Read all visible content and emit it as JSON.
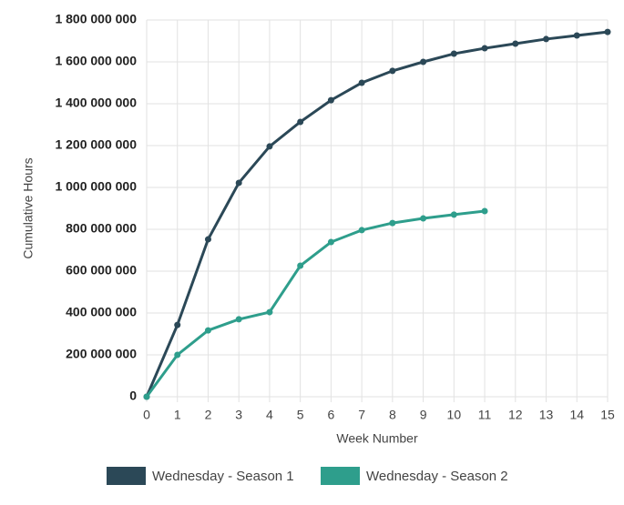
{
  "chart_data": {
    "type": "line",
    "x_label": "Week Number",
    "y_label": "Cumulative Hours",
    "x": [
      0,
      1,
      2,
      3,
      4,
      5,
      6,
      7,
      8,
      9,
      10,
      11,
      12,
      13,
      14,
      15
    ],
    "series": [
      {
        "name": "Wednesday - Season 1",
        "color": "#2b4857",
        "values": [
          0,
          343000000,
          752000000,
          1022000000,
          1196000000,
          1313000000,
          1417000000,
          1500000000,
          1557000000,
          1600000000,
          1639000000,
          1665000000,
          1687000000,
          1709000000,
          1726000000,
          1743000000
        ]
      },
      {
        "name": "Wednesday - Season 2",
        "color": "#2e9e8c",
        "values": [
          0,
          200000000,
          317000000,
          370000000,
          404000000,
          626000000,
          739000000,
          796000000,
          830000000,
          852000000,
          870000000,
          887000000,
          null,
          null,
          null,
          null
        ]
      }
    ],
    "xlim": [
      0,
      15
    ],
    "xticks": [
      0,
      1,
      2,
      3,
      4,
      5,
      6,
      7,
      8,
      9,
      10,
      11,
      12,
      13,
      14,
      15
    ],
    "ylim": [
      0,
      1800000000
    ],
    "yticks": [
      0,
      {
        "value": 200000000,
        "label": "200 000 000"
      },
      {
        "value": 400000000,
        "label": "400 000 000"
      },
      {
        "value": 600000000,
        "label": "600 000 000"
      },
      {
        "value": 800000000,
        "label": "800 000 000"
      },
      {
        "value": 1000000000,
        "label": "1 000 000 000"
      },
      {
        "value": 1200000000,
        "label": "1 200 000 000"
      },
      {
        "value": 1400000000,
        "label": "1 400 000 000"
      },
      {
        "value": 1600000000,
        "label": "1 600 000 000"
      },
      {
        "value": 1800000000,
        "label": "1 800 000 000"
      }
    ],
    "grid": true,
    "legend": "bottom"
  }
}
